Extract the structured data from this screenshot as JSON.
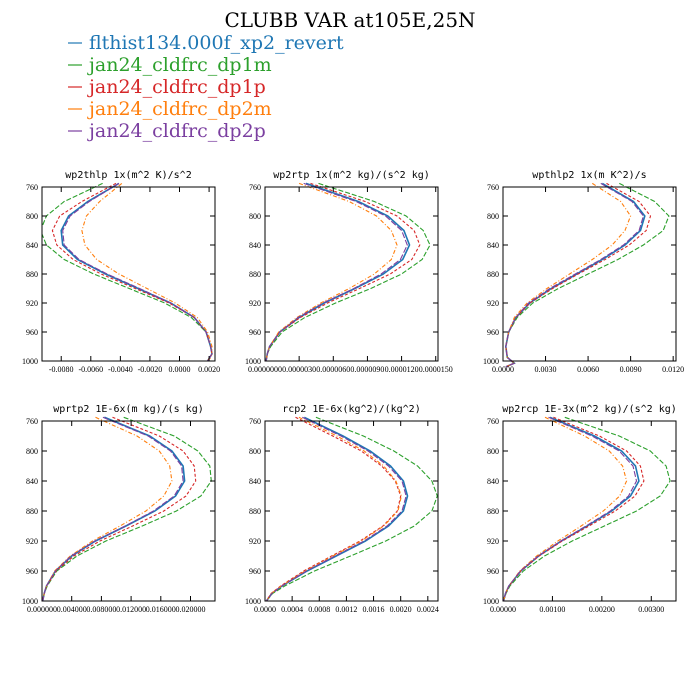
{
  "title": "CLUBB VAR at105E,25N",
  "legend": [
    {
      "name": "flthist134.000f_xp2_revert",
      "color": "#1f77b4"
    },
    {
      "name": "jan24_cldfrc_dp1m",
      "color": "#2ca02c"
    },
    {
      "name": "jan24_cldfrc_dp1p",
      "color": "#d62728"
    },
    {
      "name": "jan24_cldfrc_dp2m",
      "color": "#ff7f0e"
    },
    {
      "name": "jan24_cldfrc_dp2p",
      "color": "#7b3fa0"
    }
  ],
  "chart_data": [
    {
      "type": "line",
      "title": "wp2thlp  1x(m^2 K)/s^2",
      "xticks": [
        "-0.0080",
        "-0.0060",
        "-0.0040",
        "-0.0020",
        "0.0000",
        "0.0020"
      ],
      "xlim": [
        -0.0093,
        0.0024
      ],
      "ylim": [
        760,
        1000
      ],
      "yticks": [
        "760",
        "800",
        "840",
        "880",
        "920",
        "960",
        "1000"
      ],
      "y": [
        755,
        780,
        800,
        820,
        840,
        860,
        880,
        900,
        920,
        940,
        960,
        980,
        990,
        1000
      ],
      "series": [
        {
          "name": "flthist134.000f_xp2_revert",
          "values": [
            -0.0041,
            -0.0062,
            -0.0075,
            -0.008,
            -0.0079,
            -0.0069,
            -0.005,
            -0.0028,
            -0.0006,
            0.001,
            0.0018,
            0.0021,
            0.0022,
            0.0019
          ]
        },
        {
          "name": "jan24_cldfrc_dp1m",
          "values": [
            -0.0052,
            -0.0078,
            -0.009,
            -0.0094,
            -0.009,
            -0.0078,
            -0.0058,
            -0.0034,
            -0.001,
            0.0008,
            0.0018,
            0.0021,
            0.0022,
            0.0019
          ]
        },
        {
          "name": "jan24_cldfrc_dp1p",
          "values": [
            -0.0043,
            -0.0066,
            -0.0081,
            -0.0086,
            -0.0083,
            -0.0072,
            -0.0053,
            -0.003,
            -0.0007,
            0.001,
            0.0018,
            0.0021,
            0.0022,
            0.0019
          ]
        },
        {
          "name": "jan24_cldfrc_dp2m",
          "values": [
            -0.0039,
            -0.0054,
            -0.0063,
            -0.0066,
            -0.0064,
            -0.0056,
            -0.0041,
            -0.0022,
            -0.0003,
            0.0012,
            0.0019,
            0.0022,
            0.0022,
            0.002
          ]
        },
        {
          "name": "jan24_cldfrc_dp2p",
          "values": [
            -0.0041,
            -0.0061,
            -0.0074,
            -0.0079,
            -0.0078,
            -0.0068,
            -0.0049,
            -0.0027,
            -0.0006,
            0.001,
            0.0018,
            0.0021,
            0.0022,
            0.0019
          ]
        }
      ]
    },
    {
      "type": "line",
      "title": "wp2rtp  1x(m^2 kg)/(s^2 kg)",
      "xticks": [
        "0.0000000",
        "0.0000030",
        "0.0000060",
        "0.0000090",
        "0.0000120",
        "0.0000150"
      ],
      "xlim": [
        0,
        1.52e-05
      ],
      "ylim": [
        760,
        1000
      ],
      "yticks": [
        "760",
        "800",
        "840",
        "880",
        "920",
        "960",
        "1000"
      ],
      "y": [
        755,
        780,
        800,
        820,
        840,
        860,
        880,
        900,
        920,
        940,
        960,
        980,
        990,
        1000
      ],
      "series": [
        {
          "name": "flthist134.000f_xp2_revert",
          "values": [
            3.6e-06,
            8.2e-06,
            1.08e-05,
            1.22e-05,
            1.27e-05,
            1.21e-05,
            1.04e-05,
            7.9e-06,
            5.2e-06,
            3e-06,
            1.3e-06,
            4e-07,
            2e-07,
            1e-07
          ]
        },
        {
          "name": "jan24_cldfrc_dp1m",
          "values": [
            4.7e-06,
            9.6e-06,
            1.24e-05,
            1.39e-05,
            1.45e-05,
            1.38e-05,
            1.2e-05,
            9.3e-06,
            6.2e-06,
            3.5e-06,
            1.5e-06,
            5e-07,
            2e-07,
            1e-07
          ]
        },
        {
          "name": "jan24_cldfrc_dp1p",
          "values": [
            4e-06,
            8.8e-06,
            1.16e-05,
            1.31e-05,
            1.36e-05,
            1.29e-05,
            1.1e-05,
            8.3e-06,
            5.5e-06,
            3.1e-06,
            1.3e-06,
            4e-07,
            2e-07,
            1e-07
          ]
        },
        {
          "name": "jan24_cldfrc_dp2m",
          "values": [
            3e-06,
            7.4e-06,
            9.8e-06,
            1.11e-05,
            1.16e-05,
            1.11e-05,
            9.6e-06,
            7.4e-06,
            4.9e-06,
            2.8e-06,
            1.2e-06,
            4e-07,
            2e-07,
            1e-07
          ]
        },
        {
          "name": "jan24_cldfrc_dp2p",
          "values": [
            3.4e-06,
            8e-06,
            1.06e-05,
            1.2e-05,
            1.25e-05,
            1.19e-05,
            1.02e-05,
            7.8e-06,
            5.1e-06,
            2.9e-06,
            1.3e-06,
            4e-07,
            2e-07,
            1e-07
          ]
        }
      ]
    },
    {
      "type": "line",
      "title": "wpthlp2  1x(m K^2)/s",
      "xticks": [
        "0.0000",
        "0.0030",
        "0.0060",
        "0.0090",
        "0.0120"
      ],
      "xlim": [
        0,
        0.0122
      ],
      "ylim": [
        760,
        1000
      ],
      "yticks": [
        "760",
        "800",
        "840",
        "880",
        "920",
        "960",
        "1000"
      ],
      "y": [
        755,
        780,
        800,
        820,
        840,
        860,
        880,
        900,
        920,
        940,
        960,
        980,
        995,
        1003,
        1008
      ],
      "series": [
        {
          "name": "flthist134.000f_xp2_revert",
          "values": [
            0.007,
            0.0092,
            0.01,
            0.0097,
            0.0086,
            0.007,
            0.0052,
            0.0034,
            0.0019,
            0.0009,
            0.0004,
            0.0002,
            0.0003,
            0.0008,
            0.0002
          ]
        },
        {
          "name": "jan24_cldfrc_dp1m",
          "values": [
            0.0082,
            0.0107,
            0.0117,
            0.0113,
            0.0099,
            0.0081,
            0.006,
            0.0039,
            0.0021,
            0.001,
            0.0004,
            0.0002,
            0.0003,
            0.0008,
            0.0002
          ]
        },
        {
          "name": "jan24_cldfrc_dp1p",
          "values": [
            0.0073,
            0.0096,
            0.0104,
            0.0101,
            0.0089,
            0.0072,
            0.0053,
            0.0035,
            0.0019,
            0.0009,
            0.0004,
            0.0002,
            0.0003,
            0.0008,
            0.0002
          ]
        },
        {
          "name": "jan24_cldfrc_dp2m",
          "values": [
            0.0063,
            0.0083,
            0.009,
            0.0086,
            0.0077,
            0.0063,
            0.0047,
            0.0031,
            0.0017,
            0.0008,
            0.0004,
            0.0002,
            0.0003,
            0.0008,
            0.0002
          ]
        },
        {
          "name": "jan24_cldfrc_dp2p",
          "values": [
            0.0069,
            0.0091,
            0.0099,
            0.0096,
            0.0085,
            0.0069,
            0.0051,
            0.0033,
            0.0018,
            0.0009,
            0.0004,
            0.0002,
            0.0003,
            0.0008,
            0.0002
          ]
        }
      ]
    },
    {
      "type": "line",
      "title": "wprtp2  1E-6x(m kg)/(s kg)",
      "xticks": [
        "0.000000",
        "0.004000",
        "0.008000",
        "0.012000",
        "0.016000",
        "0.020000"
      ],
      "xlim": [
        0,
        0.0233
      ],
      "ylim": [
        760,
        1000
      ],
      "yticks": [
        "760",
        "800",
        "840",
        "880",
        "920",
        "960",
        "1000"
      ],
      "y": [
        755,
        780,
        800,
        820,
        840,
        860,
        880,
        900,
        920,
        940,
        960,
        980,
        990,
        1000
      ],
      "series": [
        {
          "name": "flthist134.000f_xp2_revert",
          "values": [
            0.0084,
            0.0145,
            0.0175,
            0.019,
            0.0192,
            0.018,
            0.0152,
            0.0113,
            0.0072,
            0.004,
            0.0018,
            0.0006,
            0.0003,
            0.0001
          ]
        },
        {
          "name": "jan24_cldfrc_dp1m",
          "values": [
            0.011,
            0.0178,
            0.021,
            0.0226,
            0.0228,
            0.0214,
            0.0181,
            0.0135,
            0.0086,
            0.0047,
            0.002,
            0.0007,
            0.0003,
            0.0001
          ]
        },
        {
          "name": "jan24_cldfrc_dp1p",
          "values": [
            0.0095,
            0.0158,
            0.019,
            0.0205,
            0.0207,
            0.0194,
            0.0164,
            0.0122,
            0.0078,
            0.0043,
            0.0019,
            0.0006,
            0.0003,
            0.0001
          ]
        },
        {
          "name": "jan24_cldfrc_dp2m",
          "values": [
            0.0072,
            0.0128,
            0.0158,
            0.0172,
            0.0175,
            0.0164,
            0.014,
            0.0105,
            0.0068,
            0.0038,
            0.0017,
            0.0006,
            0.0003,
            0.0001
          ]
        },
        {
          "name": "jan24_cldfrc_dp2p",
          "values": [
            0.0082,
            0.0143,
            0.0173,
            0.0188,
            0.019,
            0.0178,
            0.015,
            0.0112,
            0.0071,
            0.0039,
            0.0018,
            0.0006,
            0.0003,
            0.0001
          ]
        }
      ]
    },
    {
      "type": "line",
      "title": "rcp2  1E-6x(kg^2)/(kg^2)",
      "xticks": [
        "0.0000",
        "0.0004",
        "0.0008",
        "0.0012",
        "0.0016",
        "0.0020",
        "0.0024"
      ],
      "xlim": [
        0,
        0.00255
      ],
      "ylim": [
        760,
        1000
      ],
      "yticks": [
        "760",
        "800",
        "840",
        "880",
        "920",
        "960",
        "1000"
      ],
      "y": [
        755,
        780,
        800,
        820,
        840,
        860,
        880,
        900,
        920,
        940,
        960,
        980,
        990,
        1000
      ],
      "series": [
        {
          "name": "flthist134.000f_xp2_revert",
          "values": [
            0.00058,
            0.00115,
            0.00155,
            0.00185,
            0.00204,
            0.0021,
            0.00204,
            0.00182,
            0.00148,
            0.00105,
            0.00062,
            0.00025,
            0.0001,
            2e-05
          ]
        },
        {
          "name": "jan24_cldfrc_dp1m",
          "values": [
            0.00075,
            0.00145,
            0.0019,
            0.00225,
            0.00246,
            0.00254,
            0.00246,
            0.0022,
            0.00178,
            0.00126,
            0.00073,
            0.00029,
            0.00011,
            2e-05
          ]
        },
        {
          "name": "jan24_cldfrc_dp1p",
          "values": [
            0.00045,
            0.001,
            0.00142,
            0.00172,
            0.00192,
            0.002,
            0.00195,
            0.00174,
            0.0014,
            0.00098,
            0.00057,
            0.00023,
            9e-05,
            2e-05
          ]
        },
        {
          "name": "jan24_cldfrc_dp2m",
          "values": [
            0.0005,
            0.00106,
            0.00146,
            0.00175,
            0.00193,
            0.00201,
            0.00196,
            0.00175,
            0.00142,
            0.001,
            0.00059,
            0.00024,
            9e-05,
            2e-05
          ]
        },
        {
          "name": "jan24_cldfrc_dp2p",
          "values": [
            0.00055,
            0.00112,
            0.00152,
            0.00182,
            0.00202,
            0.00208,
            0.00202,
            0.0018,
            0.00146,
            0.00103,
            0.00061,
            0.00025,
            0.0001,
            2e-05
          ]
        }
      ]
    },
    {
      "type": "line",
      "title": "wp2rcp  1E-3x(m^2 kg)/(s^2 kg)",
      "xticks": [
        "0.00000",
        "0.00100",
        "0.00200",
        "0.00300"
      ],
      "xlim": [
        0,
        0.0035
      ],
      "ylim": [
        760,
        1000
      ],
      "yticks": [
        "760",
        "800",
        "840",
        "880",
        "920",
        "960",
        "1000"
      ],
      "y": [
        755,
        780,
        800,
        820,
        840,
        860,
        880,
        900,
        920,
        940,
        960,
        980,
        990,
        1000
      ],
      "series": [
        {
          "name": "flthist134.000f_xp2_revert",
          "values": [
            0.00095,
            0.00185,
            0.0024,
            0.00268,
            0.00275,
            0.00258,
            0.0022,
            0.0017,
            0.00118,
            0.00072,
            0.00036,
            0.00012,
            5e-05,
            1e-05
          ]
        },
        {
          "name": "jan24_cldfrc_dp1m",
          "values": [
            0.00125,
            0.00235,
            0.00298,
            0.0033,
            0.00338,
            0.00318,
            0.0027,
            0.00205,
            0.0014,
            0.00084,
            0.00041,
            0.00014,
            6e-05,
            1e-05
          ]
        },
        {
          "name": "jan24_cldfrc_dp1p",
          "values": [
            0.00102,
            0.00195,
            0.0025,
            0.00278,
            0.00285,
            0.00267,
            0.00227,
            0.00174,
            0.0012,
            0.00073,
            0.00036,
            0.00012,
            5e-05,
            1e-05
          ]
        },
        {
          "name": "jan24_cldfrc_dp2m",
          "values": [
            0.00085,
            0.00165,
            0.00215,
            0.00242,
            0.0025,
            0.00236,
            0.00203,
            0.00158,
            0.00111,
            0.00068,
            0.00034,
            0.00012,
            5e-05,
            1e-05
          ]
        },
        {
          "name": "jan24_cldfrc_dp2p",
          "values": [
            0.00092,
            0.0018,
            0.00235,
            0.00263,
            0.0027,
            0.00254,
            0.00217,
            0.00168,
            0.00117,
            0.00071,
            0.00035,
            0.00012,
            5e-05,
            1e-05
          ]
        }
      ]
    }
  ]
}
